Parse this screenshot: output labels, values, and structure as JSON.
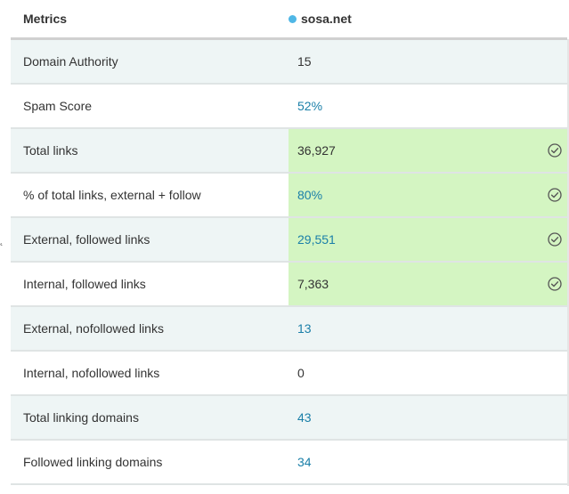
{
  "header": {
    "metric_label": "Metrics",
    "site_label": "sosa.net",
    "site_dot_color": "#4fb7e6"
  },
  "rows": [
    {
      "metric": "Domain Authority",
      "value": "15",
      "link": false,
      "highlight": false,
      "check": false
    },
    {
      "metric": "Spam Score",
      "value": "52%",
      "link": true,
      "highlight": false,
      "check": false
    },
    {
      "metric": "Total links",
      "value": "36,927",
      "link": false,
      "highlight": true,
      "check": true
    },
    {
      "metric": "% of total links, external + follow",
      "value": "80%",
      "link": true,
      "highlight": true,
      "check": true
    },
    {
      "metric": "External, followed links",
      "value": "29,551",
      "link": true,
      "highlight": true,
      "check": true
    },
    {
      "metric": "Internal, followed links",
      "value": "7,363",
      "link": false,
      "highlight": true,
      "check": true
    },
    {
      "metric": "External, nofollowed links",
      "value": "13",
      "link": true,
      "highlight": false,
      "check": false
    },
    {
      "metric": "Internal, nofollowed links",
      "value": "0",
      "link": false,
      "highlight": false,
      "check": false
    },
    {
      "metric": "Total linking domains",
      "value": "43",
      "link": true,
      "highlight": false,
      "check": false
    },
    {
      "metric": "Followed linking domains",
      "value": "34",
      "link": true,
      "highlight": false,
      "check": false
    }
  ],
  "icons": {
    "check": "check-circle-icon"
  },
  "colors": {
    "highlight_bg": "#d4f5c2",
    "link_text": "#1a7fa8",
    "shaded_row": "#eef5f5"
  }
}
